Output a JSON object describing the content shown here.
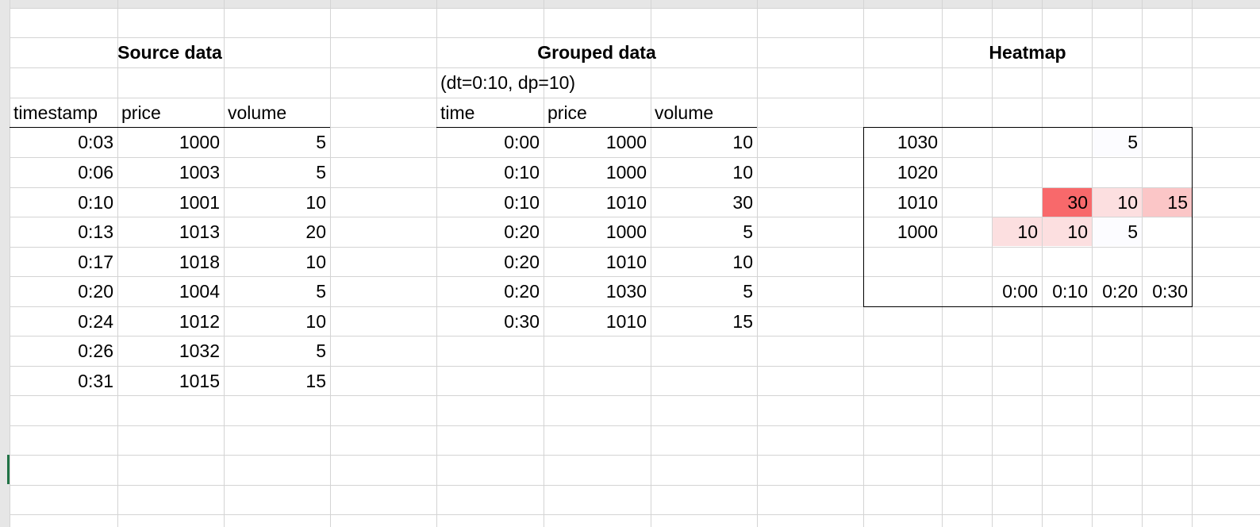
{
  "sections": {
    "source_title": "Source data",
    "grouped_title": "Grouped data",
    "grouped_subtitle": "(dt=0:10, dp=10)",
    "heatmap_title": "Heatmap"
  },
  "source": {
    "headers": [
      "timestamp",
      "price",
      "volume"
    ],
    "rows": [
      [
        "0:03",
        "1000",
        "5"
      ],
      [
        "0:06",
        "1003",
        "5"
      ],
      [
        "0:10",
        "1001",
        "10"
      ],
      [
        "0:13",
        "1013",
        "20"
      ],
      [
        "0:17",
        "1018",
        "10"
      ],
      [
        "0:20",
        "1004",
        "5"
      ],
      [
        "0:24",
        "1012",
        "10"
      ],
      [
        "0:26",
        "1032",
        "5"
      ],
      [
        "0:31",
        "1015",
        "15"
      ]
    ]
  },
  "grouped": {
    "headers": [
      "time",
      "price",
      "volume"
    ],
    "rows": [
      [
        "0:00",
        "1000",
        "10"
      ],
      [
        "0:10",
        "1000",
        "10"
      ],
      [
        "0:10",
        "1010",
        "30"
      ],
      [
        "0:20",
        "1000",
        "5"
      ],
      [
        "0:20",
        "1010",
        "10"
      ],
      [
        "0:20",
        "1030",
        "5"
      ],
      [
        "0:30",
        "1010",
        "15"
      ]
    ]
  },
  "heatmap": {
    "price_labels": [
      "1030",
      "1020",
      "1010",
      "1000"
    ],
    "time_labels": [
      "0:00",
      "0:10",
      "0:20",
      "0:30"
    ],
    "cells": [
      [
        "",
        "",
        "5",
        ""
      ],
      [
        "",
        "",
        "",
        ""
      ],
      [
        "",
        "30",
        "10",
        "15"
      ],
      [
        "10",
        "10",
        "5",
        ""
      ]
    ],
    "colors": {
      "max": "#f8696b",
      "v15": "#fbc6c7",
      "v10": "#fcdfe0",
      "v5": "#fcfcff"
    }
  }
}
